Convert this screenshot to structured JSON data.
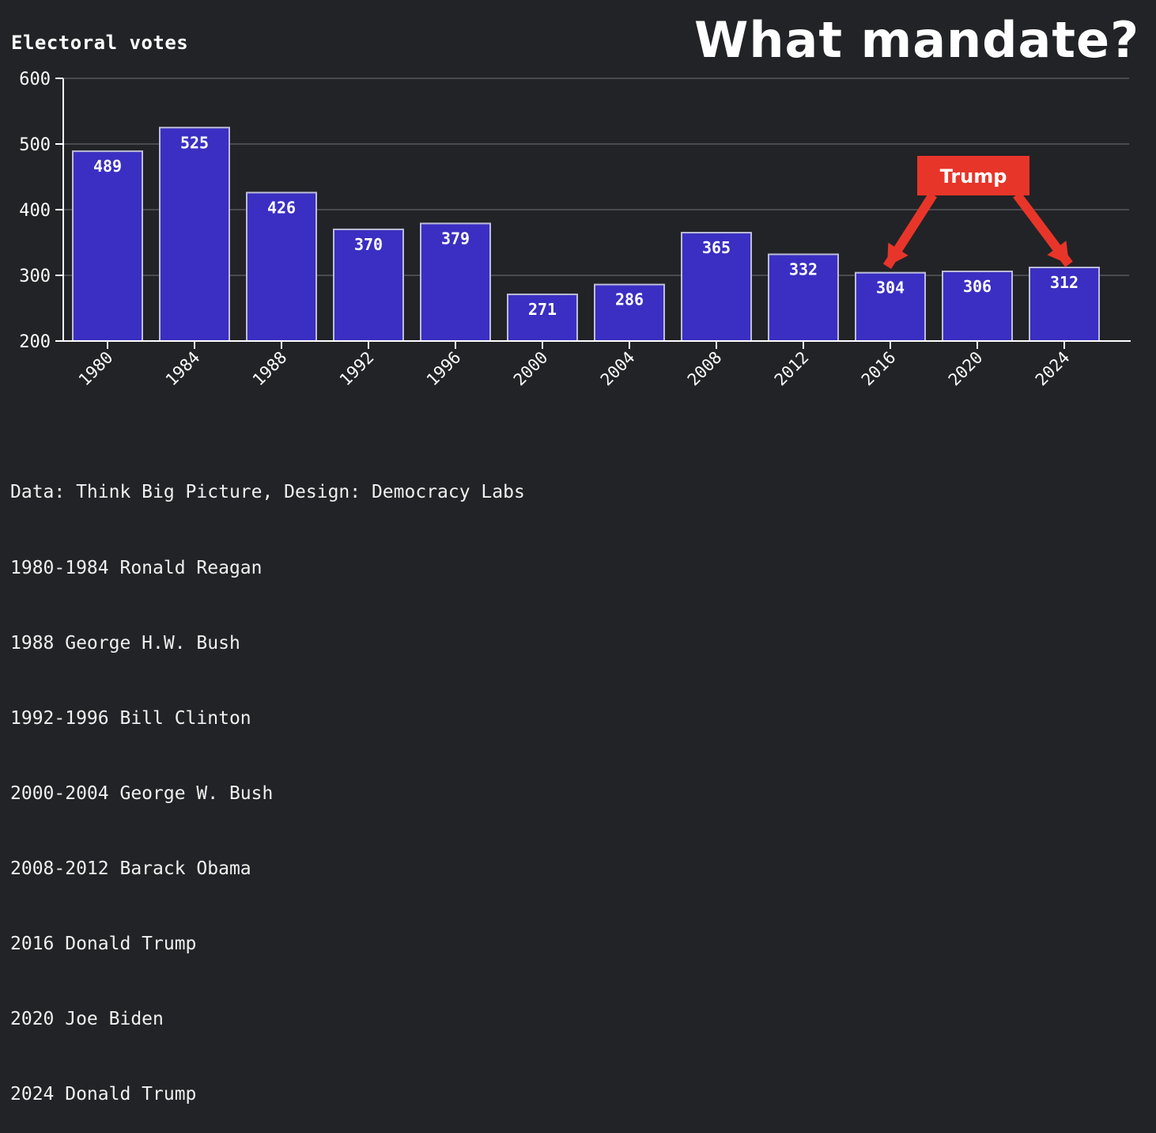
{
  "chart_data": {
    "type": "bar",
    "title": "What mandate?",
    "ylabel": "Electoral votes",
    "xlabel": "",
    "categories": [
      "1980",
      "1984",
      "1988",
      "1992",
      "1996",
      "2000",
      "2004",
      "2008",
      "2012",
      "2016",
      "2020",
      "2024"
    ],
    "values": [
      489,
      525,
      426,
      370,
      379,
      271,
      286,
      365,
      332,
      304,
      306,
      312
    ],
    "ylim": [
      200,
      600
    ],
    "yticks": [
      200,
      300,
      400,
      500,
      600
    ],
    "grid": true,
    "colors": {
      "bar": "#3a2fc2",
      "bar_border": "#bdbdd6",
      "grid": "#4a4b50",
      "axis": "#ffffff",
      "annotation": "#e8352a",
      "background": "#222326"
    },
    "annotation": {
      "label": "Trump",
      "points_to": [
        "2016",
        "2024"
      ]
    }
  },
  "footer": {
    "lines": [
      "Data: Think Big Picture, Design: Democracy Labs",
      "1980-1984 Ronald Reagan",
      "1988 George H.W. Bush",
      "1992-1996 Bill Clinton",
      "2000-2004 George W. Bush",
      "2008-2012 Barack Obama",
      "2016 Donald Trump",
      "2020 Joe Biden",
      "2024 Donald Trump"
    ]
  }
}
